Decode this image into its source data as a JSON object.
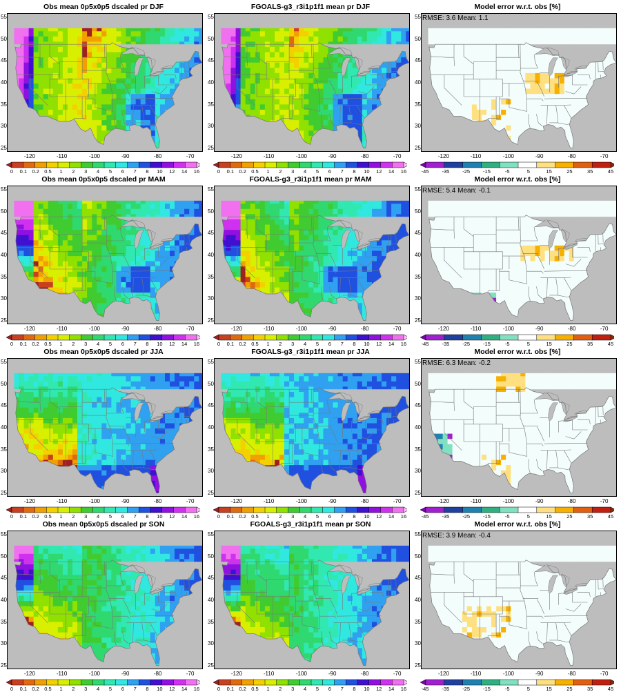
{
  "figure": {
    "panels": [
      {
        "title": "Obs mean 0p5x0p5 dscaled pr DJF",
        "kind": "precip",
        "season": "DJF",
        "stats": ""
      },
      {
        "title": "FGOALS-g3_r3i1p1f1 mean pr DJF",
        "kind": "precip",
        "season": "DJF",
        "stats": ""
      },
      {
        "title": "Model error w.r.t. obs [%]",
        "kind": "error",
        "season": "DJF",
        "stats": "RMSE: 3.6  Mean: 1.1"
      },
      {
        "title": "Obs mean 0p5x0p5 dscaled pr MAM",
        "kind": "precip",
        "season": "MAM",
        "stats": ""
      },
      {
        "title": "FGOALS-g3_r3i1p1f1 mean pr MAM",
        "kind": "precip",
        "season": "MAM",
        "stats": ""
      },
      {
        "title": "Model error w.r.t. obs [%]",
        "kind": "error",
        "season": "MAM",
        "stats": "RMSE: 5.4  Mean: -0.1"
      },
      {
        "title": "Obs mean 0p5x0p5 dscaled pr JJA",
        "kind": "precip",
        "season": "JJA",
        "stats": ""
      },
      {
        "title": "FGOALS-g3_r3i1p1f1 mean pr JJA",
        "kind": "precip",
        "season": "JJA",
        "stats": ""
      },
      {
        "title": "Model error w.r.t. obs [%]",
        "kind": "error",
        "season": "JJA",
        "stats": "RMSE: 6.3  Mean: -0.2"
      },
      {
        "title": "Obs mean 0p5x0p5 dscaled pr SON",
        "kind": "precip",
        "season": "SON",
        "stats": ""
      },
      {
        "title": "FGOALS-g3_r3i1p1f1 mean pr SON",
        "kind": "precip",
        "season": "SON",
        "stats": ""
      },
      {
        "title": "Model error w.r.t. obs [%]",
        "kind": "error",
        "season": "SON",
        "stats": "RMSE: 3.9  Mean: -0.4"
      }
    ],
    "lon_ticks": [
      "-120",
      "-110",
      "-100",
      "-90",
      "-80",
      "-70"
    ],
    "lat_ticks": [
      "55",
      "50",
      "45",
      "40",
      "35",
      "30",
      "25"
    ],
    "precip_colorbar": {
      "labels": [
        "0",
        "0.1",
        "0.2",
        "0.5",
        "1",
        "2",
        "3",
        "4",
        "5",
        "6",
        "7",
        "8",
        "10",
        "12",
        "14",
        "16"
      ],
      "colors": [
        "#a02020",
        "#c84020",
        "#e06a10",
        "#f0a000",
        "#f5d000",
        "#d8f000",
        "#90e000",
        "#40cc30",
        "#30d870",
        "#30e8b0",
        "#30e8e0",
        "#30a0f0",
        "#2050e0",
        "#4010d0",
        "#9010e0",
        "#d030f0",
        "#f070f0",
        "#f8c0f8"
      ]
    },
    "error_colorbar": {
      "labels": [
        "-45",
        "-35",
        "-25",
        "-15",
        "-5",
        "5",
        "15",
        "25",
        "35",
        "45"
      ],
      "colors": [
        "#7a00b0",
        "#a020d0",
        "#2040a0",
        "#2080b0",
        "#30b080",
        "#80e0c0",
        "#ffffff",
        "#ffe080",
        "#f8b000",
        "#e06010",
        "#c02010",
        "#803000"
      ]
    },
    "background_colors": {
      "ocean": "#bdbdbd",
      "border": "#777777",
      "error_land": "#f2fdfc"
    }
  }
}
